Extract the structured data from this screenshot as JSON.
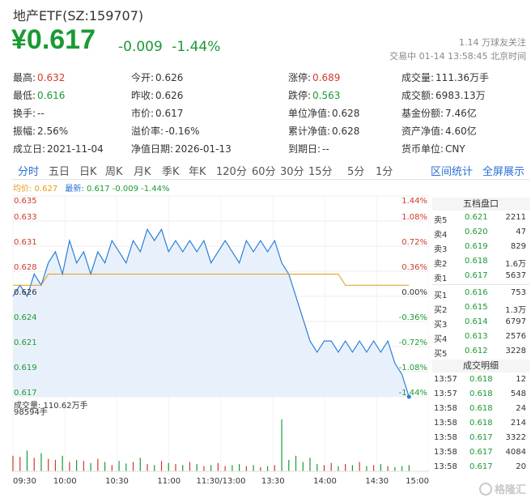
{
  "header": {
    "title": "地产ETF(SZ:159707)",
    "price": "¥0.617",
    "change": "-0.009",
    "change_pct": "-1.44%",
    "followers": "1.14 万球友关注",
    "trade_status": "交易中 01-14 13:58:45 北京时间"
  },
  "stats": [
    [
      {
        "k": "最高:",
        "v": "0.632",
        "c": "red"
      },
      {
        "k": "今开:",
        "v": "0.626",
        "c": ""
      },
      {
        "k": "涨停:",
        "v": "0.689",
        "c": "red"
      },
      {
        "k": "成交量:",
        "v": "111.36万手",
        "c": ""
      }
    ],
    [
      {
        "k": "最低:",
        "v": "0.616",
        "c": "green"
      },
      {
        "k": "昨收:",
        "v": "0.626",
        "c": ""
      },
      {
        "k": "跌停:",
        "v": "0.563",
        "c": "green"
      },
      {
        "k": "成交额:",
        "v": "6983.13万",
        "c": ""
      }
    ],
    [
      {
        "k": "换手:",
        "v": "--",
        "c": ""
      },
      {
        "k": "市价:",
        "v": "0.617",
        "c": ""
      },
      {
        "k": "单位净值:",
        "v": "0.628",
        "c": ""
      },
      {
        "k": "基金份额:",
        "v": "7.46亿",
        "c": ""
      }
    ],
    [
      {
        "k": "振幅:",
        "v": "2.56%",
        "c": ""
      },
      {
        "k": "溢价率:",
        "v": "-0.16%",
        "c": ""
      },
      {
        "k": "累计净值:",
        "v": "0.628",
        "c": ""
      },
      {
        "k": "资产净值:",
        "v": "4.60亿",
        "c": ""
      }
    ],
    [
      {
        "k": "成立日:",
        "v": "2021-11-04",
        "c": ""
      },
      {
        "k": "净值日期:",
        "v": "2026-01-13",
        "c": ""
      },
      {
        "k": "到期日:",
        "v": "--",
        "c": ""
      },
      {
        "k": "货币单位:",
        "v": "CNY",
        "c": ""
      }
    ]
  ],
  "tabs": [
    "分时",
    "五日",
    "日K",
    "周K",
    "月K",
    "季K",
    "年K",
    "120分",
    "60分",
    "30分",
    "15分",
    "5分",
    "1分"
  ],
  "tabs_right": [
    "区间统计",
    "全屏展示"
  ],
  "legend": {
    "avg": "均价: 0.627",
    "last_label": "最新:",
    "last_val": "0.617 -0.009 -1.44%"
  },
  "chart_data": {
    "type": "line",
    "title": "",
    "ylim": [
      0.617,
      0.635
    ],
    "left_ticks": [
      "0.635",
      "0.633",
      "0.631",
      "0.628",
      "0.626",
      "0.624",
      "0.621",
      "0.619",
      "0.617"
    ],
    "right_ticks": [
      "1.44%",
      "1.08%",
      "0.72%",
      "0.36%",
      "0.00%",
      "-0.36%",
      "-0.72%",
      "-1.08%",
      "-1.44%"
    ],
    "x_ticks": [
      "09:30",
      "10:00",
      "10:30",
      "11:00",
      "11:30/13:00",
      "13:30",
      "14:00",
      "14:30",
      "15:00"
    ],
    "price": [
      0.626,
      0.627,
      0.626,
      0.628,
      0.627,
      0.629,
      0.63,
      0.628,
      0.631,
      0.629,
      0.63,
      0.628,
      0.63,
      0.629,
      0.631,
      0.63,
      0.629,
      0.631,
      0.63,
      0.632,
      0.631,
      0.632,
      0.63,
      0.631,
      0.63,
      0.631,
      0.63,
      0.631,
      0.629,
      0.63,
      0.631,
      0.63,
      0.629,
      0.631,
      0.63,
      0.631,
      0.63,
      0.631,
      0.629,
      0.628,
      0.626,
      0.624,
      0.622,
      0.621,
      0.622,
      0.622,
      0.621,
      0.622,
      0.621,
      0.622,
      0.621,
      0.622,
      0.621,
      0.622,
      0.62,
      0.619,
      0.617
    ],
    "avg": [
      0.627,
      0.627,
      0.627,
      0.627,
      0.627,
      0.628,
      0.628,
      0.628,
      0.628,
      0.628,
      0.628,
      0.628,
      0.628,
      0.628,
      0.628,
      0.628,
      0.628,
      0.628,
      0.628,
      0.628,
      0.628,
      0.628,
      0.628,
      0.628,
      0.628,
      0.628,
      0.628,
      0.628,
      0.628,
      0.628,
      0.628,
      0.628,
      0.628,
      0.628,
      0.628,
      0.628,
      0.628,
      0.628,
      0.628,
      0.628,
      0.628,
      0.628,
      0.628,
      0.628,
      0.628,
      0.628,
      0.628,
      0.627,
      0.627,
      0.627,
      0.627,
      0.627,
      0.627,
      0.627,
      0.627,
      0.627,
      0.627
    ],
    "volume_label": "成交量: 110.62万手",
    "volume_max_label": "98594手",
    "volume": [
      30,
      28,
      40,
      26,
      35,
      24,
      22,
      30,
      18,
      22,
      20,
      16,
      24,
      18,
      12,
      20,
      15,
      18,
      26,
      14,
      12,
      20,
      16,
      14,
      12,
      18,
      14,
      10,
      12,
      16,
      10,
      12,
      14,
      10,
      12,
      8,
      10,
      12,
      100,
      22,
      30,
      18,
      26,
      14,
      12,
      16,
      10,
      14,
      12,
      18,
      10,
      12,
      14,
      10,
      8,
      10,
      12
    ]
  },
  "order_book": {
    "title": "五档盘口",
    "asks": [
      {
        "l": "卖5",
        "p": "0.621",
        "q": "2211"
      },
      {
        "l": "卖4",
        "p": "0.620",
        "q": "47"
      },
      {
        "l": "卖3",
        "p": "0.619",
        "q": "829"
      },
      {
        "l": "卖2",
        "p": "0.618",
        "q": "1.6万"
      },
      {
        "l": "卖1",
        "p": "0.617",
        "q": "5637"
      }
    ],
    "bids": [
      {
        "l": "买1",
        "p": "0.616",
        "q": "753"
      },
      {
        "l": "买2",
        "p": "0.615",
        "q": "1.3万"
      },
      {
        "l": "买3",
        "p": "0.614",
        "q": "6797"
      },
      {
        "l": "买4",
        "p": "0.613",
        "q": "2576"
      },
      {
        "l": "买5",
        "p": "0.612",
        "q": "3228"
      }
    ]
  },
  "deals": {
    "title": "成交明细",
    "rows": [
      {
        "t": "13:57",
        "p": "0.618",
        "q": "12"
      },
      {
        "t": "13:57",
        "p": "0.618",
        "q": "548"
      },
      {
        "t": "13:58",
        "p": "0.618",
        "q": "24"
      },
      {
        "t": "13:58",
        "p": "0.618",
        "q": "214"
      },
      {
        "t": "13:58",
        "p": "0.617",
        "q": "3322"
      },
      {
        "t": "13:58",
        "p": "0.617",
        "q": "4084"
      },
      {
        "t": "13:58",
        "p": "0.617",
        "q": "20"
      }
    ]
  },
  "watermark": "格隆汇",
  "colors": {
    "up": "#d13a2b",
    "down": "#1a9a33",
    "line": "#2a7ed9",
    "avg": "#e39b17"
  }
}
